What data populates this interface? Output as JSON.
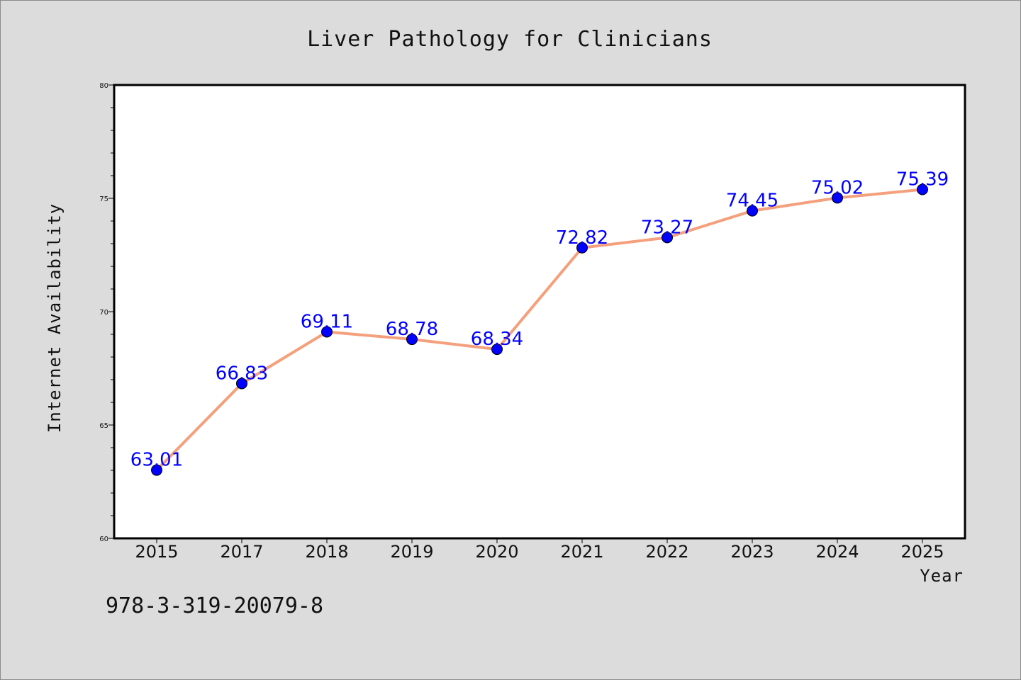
{
  "chart_data": {
    "type": "line",
    "title": "Liver Pathology for Clinicians",
    "xlabel": "Year",
    "ylabel": "Internet Availability",
    "categories": [
      "2015",
      "2017",
      "2018",
      "2019",
      "2020",
      "2021",
      "2022",
      "2023",
      "2024",
      "2025"
    ],
    "series": [
      {
        "values": [
          63.01,
          66.83,
          69.11,
          68.78,
          68.34,
          72.82,
          73.27,
          74.45,
          75.02,
          75.39
        ],
        "data_labels": [
          "63.01",
          "66.83",
          "69.11",
          "68.78",
          "68.34",
          "72.82",
          "73.27",
          "74.45",
          "75.02",
          "75.39"
        ],
        "line_color": "#f4a07c",
        "marker_color": "#0000ff",
        "label_color": "#0000ff"
      }
    ],
    "ylim": [
      60,
      80
    ],
    "yticks": [
      "60",
      "65",
      "70",
      "75",
      "80"
    ],
    "grid": false,
    "legend": "none"
  },
  "annotations": {
    "footnote": "978-3-319-20079-8"
  },
  "colors": {
    "background": "#dcdcdc",
    "plot_background": "#ffffff",
    "axis": "#000000"
  }
}
